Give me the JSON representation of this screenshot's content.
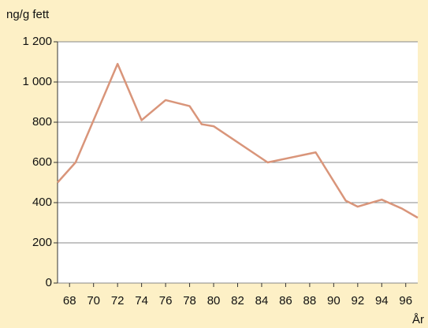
{
  "chart_data": {
    "type": "line",
    "y_label": "ng/g fett",
    "x_label": "År",
    "x": [
      67,
      68.5,
      72,
      74,
      76,
      78,
      79,
      80,
      84.5,
      88.5,
      91,
      92,
      94,
      95.7,
      97
    ],
    "series": [
      {
        "color": "#d9957a",
        "values": [
          500,
          600,
          1090,
          810,
          910,
          880,
          790,
          780,
          600,
          650,
          410,
          380,
          415,
          370,
          325
        ]
      }
    ],
    "xlim": [
      67,
      97
    ],
    "xticks": [
      68,
      70,
      72,
      74,
      76,
      78,
      80,
      82,
      84,
      86,
      88,
      90,
      92,
      94,
      96
    ],
    "ylim": [
      0,
      1200
    ],
    "yticks": [
      0,
      200,
      400,
      600,
      800,
      {
        "value": 1000,
        "label": "1 000"
      },
      {
        "value": 1200,
        "label": "1 200"
      }
    ],
    "grid": true
  }
}
